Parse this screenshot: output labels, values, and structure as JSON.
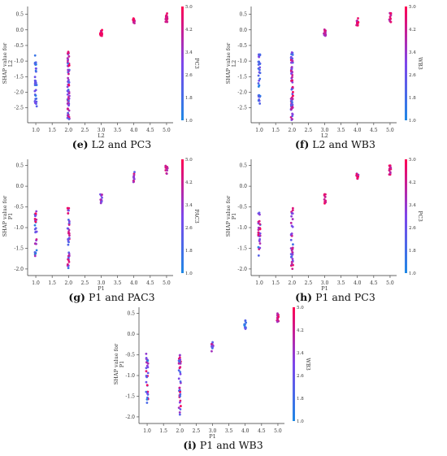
{
  "figure": {
    "panels": [
      {
        "letter": "(e)",
        "caption": "L2 and PC3"
      },
      {
        "letter": "(f)",
        "caption": "L2 and WB3"
      },
      {
        "letter": "(g)",
        "caption": "P1 and PAC3"
      },
      {
        "letter": "(h)",
        "caption": "P1 and PC3"
      },
      {
        "letter": "(i)",
        "caption": "P1 and WB3"
      }
    ]
  },
  "chart_data": [
    {
      "type": "scatter",
      "panel": "e",
      "xlabel": "L2",
      "ylabel_lines": [
        "SHAP value for",
        "L2"
      ],
      "colorbar_label": "PC3",
      "colorbar_ticks": [
        "1.0",
        "1.8",
        "2.6",
        "3.4",
        "4.2",
        "5.0"
      ],
      "colorbar_range": [
        1.0,
        5.0
      ],
      "x_ticks": [
        "1.0",
        "1.5",
        "2.0",
        "2.5",
        "3.0",
        "3.5",
        "4.0",
        "4.5",
        "5.0"
      ],
      "y_ticks": [
        "0.5",
        "0.0",
        "-0.5",
        "-1.0",
        "-1.5",
        "-2.0",
        "-2.5"
      ],
      "xlim": [
        0.8,
        5.2
      ],
      "ylim": [
        -2.9,
        0.75
      ],
      "series": [
        {
          "x": 1,
          "y_range": [
            -2.45,
            -0.7
          ],
          "color_range": [
            1.0,
            3.0
          ],
          "n": 34
        },
        {
          "x": 2,
          "y_range": [
            -2.9,
            -0.7
          ],
          "color_range": [
            1.5,
            5.0
          ],
          "n": 70
        },
        {
          "x": 3,
          "y_range": [
            -0.2,
            0.02
          ],
          "color_range": [
            4.0,
            5.0
          ],
          "n": 14
        },
        {
          "x": 4,
          "y_range": [
            0.12,
            0.38
          ],
          "color_range": [
            4.0,
            5.0
          ],
          "n": 14
        },
        {
          "x": 5,
          "y_range": [
            0.25,
            0.55
          ],
          "color_range": [
            4.0,
            5.0
          ],
          "n": 16
        }
      ]
    },
    {
      "type": "scatter",
      "panel": "f",
      "xlabel": "L2",
      "ylabel_lines": [
        "SHAP value for",
        "L2"
      ],
      "colorbar_label": "WB3",
      "colorbar_ticks": [
        "1.0",
        "1.8",
        "2.6",
        "3.4",
        "4.2",
        "5.0"
      ],
      "colorbar_range": [
        1.0,
        5.0
      ],
      "x_ticks": [
        "1.0",
        "1.5",
        "2.0",
        "2.5",
        "3.0",
        "3.5",
        "4.0",
        "4.5",
        "5.0"
      ],
      "y_ticks": [
        "0.5",
        "0.0",
        "-0.5",
        "-1.0",
        "-1.5",
        "-2.0",
        "-2.5"
      ],
      "xlim": [
        0.8,
        5.2
      ],
      "ylim": [
        -2.9,
        0.75
      ],
      "series": [
        {
          "x": 1,
          "y_range": [
            -2.45,
            -0.7
          ],
          "color_range": [
            1.0,
            3.2
          ],
          "n": 34
        },
        {
          "x": 2,
          "y_range": [
            -2.9,
            -0.7
          ],
          "color_range": [
            1.5,
            5.0
          ],
          "n": 70
        },
        {
          "x": 3,
          "y_range": [
            -0.2,
            0.02
          ],
          "color_range": [
            3.2,
            4.8
          ],
          "n": 14
        },
        {
          "x": 4,
          "y_range": [
            0.12,
            0.38
          ],
          "color_range": [
            3.5,
            5.0
          ],
          "n": 14
        },
        {
          "x": 5,
          "y_range": [
            0.25,
            0.55
          ],
          "color_range": [
            3.5,
            5.0
          ],
          "n": 16
        }
      ]
    },
    {
      "type": "scatter",
      "panel": "g",
      "xlabel": "P1",
      "ylabel_lines": [
        "SHAP value for",
        "P1"
      ],
      "colorbar_label": "PAC3",
      "colorbar_ticks": [
        "1.0",
        "1.8",
        "2.6",
        "3.4",
        "4.2",
        "5.0"
      ],
      "colorbar_range": [
        1.0,
        5.0
      ],
      "x_ticks": [
        "1.0",
        "1.5",
        "2.0",
        "2.5",
        "3.0",
        "3.5",
        "4.0",
        "4.5",
        "5.0"
      ],
      "y_ticks": [
        "0.5",
        "0.0",
        "-0.5",
        "-1.0",
        "-1.5",
        "-2.0"
      ],
      "xlim": [
        0.8,
        5.2
      ],
      "ylim": [
        -2.1,
        0.65
      ],
      "series": [
        {
          "x": 1,
          "y_range": [
            -1.7,
            -0.45
          ],
          "color_range": [
            1.0,
            5.0
          ],
          "n": 30
        },
        {
          "x": 2,
          "y_range": [
            -2.0,
            -0.5
          ],
          "color_range": [
            1.5,
            5.0
          ],
          "n": 40
        },
        {
          "x": 3,
          "y_range": [
            -0.42,
            -0.18
          ],
          "color_range": [
            2.5,
            4.2
          ],
          "n": 12
        },
        {
          "x": 4,
          "y_range": [
            0.1,
            0.35
          ],
          "color_range": [
            2.0,
            5.0
          ],
          "n": 12
        },
        {
          "x": 5,
          "y_range": [
            0.28,
            0.5
          ],
          "color_range": [
            3.5,
            5.0
          ],
          "n": 14
        }
      ]
    },
    {
      "type": "scatter",
      "panel": "h",
      "xlabel": "P1",
      "ylabel_lines": [
        "SHAP value for",
        "P1"
      ],
      "colorbar_label": "PC3",
      "colorbar_ticks": [
        "1.0",
        "1.8",
        "2.6",
        "3.4",
        "4.2",
        "5.0"
      ],
      "colorbar_range": [
        1.0,
        5.0
      ],
      "x_ticks": [
        "1.0",
        "1.5",
        "2.0",
        "2.5",
        "3.0",
        "3.5",
        "4.0",
        "4.5",
        "5.0"
      ],
      "y_ticks": [
        "0.5",
        "0.0",
        "-0.5",
        "-1.0",
        "-1.5",
        "-2.0"
      ],
      "xlim": [
        0.8,
        5.2
      ],
      "ylim": [
        -2.1,
        0.65
      ],
      "series": [
        {
          "x": 1,
          "y_range": [
            -1.7,
            -0.45
          ],
          "color_range": [
            1.0,
            5.0
          ],
          "n": 30
        },
        {
          "x": 2,
          "y_range": [
            -2.0,
            -0.5
          ],
          "color_range": [
            1.5,
            5.0
          ],
          "n": 40
        },
        {
          "x": 3,
          "y_range": [
            -0.42,
            -0.18
          ],
          "color_range": [
            4.0,
            5.0
          ],
          "n": 12
        },
        {
          "x": 4,
          "y_range": [
            0.1,
            0.35
          ],
          "color_range": [
            2.0,
            5.0
          ],
          "n": 12
        },
        {
          "x": 5,
          "y_range": [
            0.28,
            0.5
          ],
          "color_range": [
            3.5,
            5.0
          ],
          "n": 14
        }
      ]
    },
    {
      "type": "scatter",
      "panel": "i",
      "xlabel": "P1",
      "ylabel_lines": [
        "SHAP value for",
        "P1"
      ],
      "colorbar_label": "WB3",
      "colorbar_ticks": [
        "1.0",
        "1.8",
        "2.6",
        "3.4",
        "4.2",
        "5.0"
      ],
      "colorbar_range": [
        1.0,
        5.0
      ],
      "x_ticks": [
        "1.0",
        "1.5",
        "2.0",
        "2.5",
        "3.0",
        "3.5",
        "4.0",
        "4.5",
        "5.0"
      ],
      "y_ticks": [
        "0.5",
        "0.0",
        "-0.5",
        "-1.0",
        "-1.5",
        "-2.0"
      ],
      "xlim": [
        0.8,
        5.2
      ],
      "ylim": [
        -2.1,
        0.65
      ],
      "series": [
        {
          "x": 1,
          "y_range": [
            -1.7,
            -0.45
          ],
          "color_range": [
            1.0,
            5.0
          ],
          "n": 30
        },
        {
          "x": 2,
          "y_range": [
            -2.0,
            -0.5
          ],
          "color_range": [
            1.5,
            5.0
          ],
          "n": 40
        },
        {
          "x": 3,
          "y_range": [
            -0.42,
            -0.15
          ],
          "color_range": [
            1.5,
            4.2
          ],
          "n": 12
        },
        {
          "x": 4,
          "y_range": [
            0.1,
            0.35
          ],
          "color_range": [
            1.0,
            3.0
          ],
          "n": 12
        },
        {
          "x": 5,
          "y_range": [
            0.25,
            0.5
          ],
          "color_range": [
            3.5,
            5.0
          ],
          "n": 14
        }
      ]
    }
  ],
  "colors": {
    "low": "#1e88e5",
    "high": "#ff0052"
  }
}
